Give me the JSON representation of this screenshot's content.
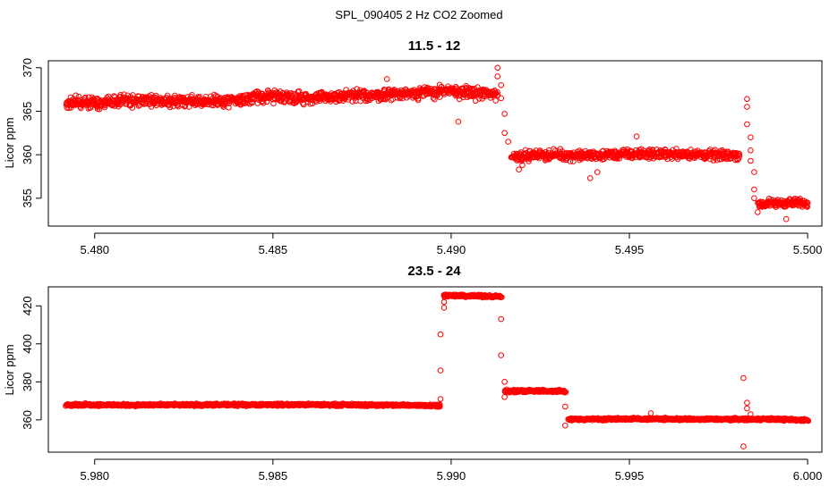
{
  "figure": {
    "title": "SPL_090405  2 Hz CO2 Zoomed",
    "point_color": "#ff0000"
  },
  "chart_data": [
    {
      "type": "scatter",
      "title": "11.5 - 12",
      "xlabel": "",
      "ylabel": "Licor ppm",
      "xlim": [
        5.4787,
        5.5004
      ],
      "ylim": [
        351.8,
        370.8
      ],
      "xticks": [
        5.48,
        5.485,
        5.49,
        5.495,
        5.5
      ],
      "xtick_labels": [
        "5.480",
        "5.485",
        "5.490",
        "5.495",
        "5.500"
      ],
      "yticks": [
        355,
        360,
        365,
        370
      ],
      "ytick_labels": [
        "355",
        "360",
        "365",
        "370"
      ],
      "marker": "open-circle",
      "grid": false,
      "segments": [
        {
          "x": [
            5.4792,
            5.48,
            5.481,
            5.482,
            5.483,
            5.484,
            5.485,
            5.486,
            5.487,
            5.488,
            5.489,
            5.49,
            5.491,
            5.4913
          ],
          "y": [
            366.0,
            366.0,
            366.2,
            366.3,
            366.1,
            366.3,
            366.8,
            366.5,
            366.7,
            366.9,
            367.1,
            367.3,
            367.0,
            367.0
          ],
          "spread": 2.0
        },
        {
          "x": [
            5.4917,
            5.4925,
            5.4935,
            5.4945,
            5.4955,
            5.4965,
            5.4975,
            5.4981
          ],
          "y": [
            359.8,
            360.0,
            359.9,
            360.0,
            360.1,
            360.1,
            359.9,
            360.0
          ],
          "spread": 1.6
        },
        {
          "x": [
            5.4986,
            5.499,
            5.4995,
            5.5
          ],
          "y": [
            354.3,
            354.4,
            354.5,
            354.4
          ],
          "spread": 1.4
        }
      ],
      "outliers": {
        "x": [
          5.4902,
          5.4913,
          5.4913,
          5.4914,
          5.4914,
          5.4915,
          5.4915,
          5.4916,
          5.4882,
          5.4919,
          5.492,
          5.4939,
          5.4941,
          5.4952,
          5.4983,
          5.4983,
          5.4983,
          5.4984,
          5.4984,
          5.4984,
          5.4985,
          5.4985,
          5.4985,
          5.4986,
          5.4994
        ],
        "y": [
          363.8,
          370.0,
          369.0,
          368.0,
          366.5,
          364.7,
          362.5,
          361.5,
          368.7,
          358.3,
          358.8,
          357.3,
          358.0,
          362.1,
          366.4,
          365.5,
          363.5,
          362.0,
          360.5,
          359.3,
          358.0,
          356.0,
          355.0,
          353.4,
          352.6
        ]
      }
    },
    {
      "type": "scatter",
      "title": "23.5 - 24",
      "xlabel": "",
      "ylabel": "Licor ppm",
      "xlim": [
        5.9787,
        6.0004
      ],
      "ylim": [
        343,
        430
      ],
      "xticks": [
        5.98,
        5.985,
        5.99,
        5.995,
        6.0
      ],
      "xtick_labels": [
        "5.980",
        "5.985",
        "5.990",
        "5.995",
        "6.000"
      ],
      "yticks": [
        360,
        380,
        400,
        420
      ],
      "ytick_labels": [
        "360",
        "380",
        "400",
        "420"
      ],
      "marker": "open-circle",
      "grid": false,
      "segments": [
        {
          "x": [
            5.9792,
            5.981,
            5.983,
            5.985,
            5.987,
            5.9897
          ],
          "y": [
            368.0,
            367.8,
            367.9,
            368.0,
            367.9,
            367.6
          ],
          "spread": 1.8
        },
        {
          "x": [
            5.9898,
            5.9905,
            5.9914
          ],
          "y": [
            425.5,
            425.2,
            425.0
          ],
          "spread": 1.8
        },
        {
          "x": [
            5.9915,
            5.9922,
            5.9932
          ],
          "y": [
            375.0,
            375.3,
            375.0
          ],
          "spread": 2.2
        },
        {
          "x": [
            5.9933,
            5.995,
            5.997,
            5.999,
            6.0
          ],
          "y": [
            360.3,
            360.5,
            360.3,
            360.4,
            359.8
          ],
          "spread": 1.8
        }
      ],
      "outliers": {
        "x": [
          5.9897,
          5.9897,
          5.9897,
          5.9898,
          5.9898,
          5.9914,
          5.9914,
          5.9915,
          5.9915,
          5.9932,
          5.9932,
          5.9982,
          5.9983,
          5.9983,
          5.9984,
          5.9982,
          5.9956
        ],
        "y": [
          371.0,
          386.0,
          405.0,
          419.0,
          422.0,
          413.0,
          394.0,
          380.0,
          372.0,
          367.0,
          357.0,
          382.0,
          369.0,
          366.0,
          363.0,
          346.0,
          363.5
        ]
      }
    }
  ]
}
